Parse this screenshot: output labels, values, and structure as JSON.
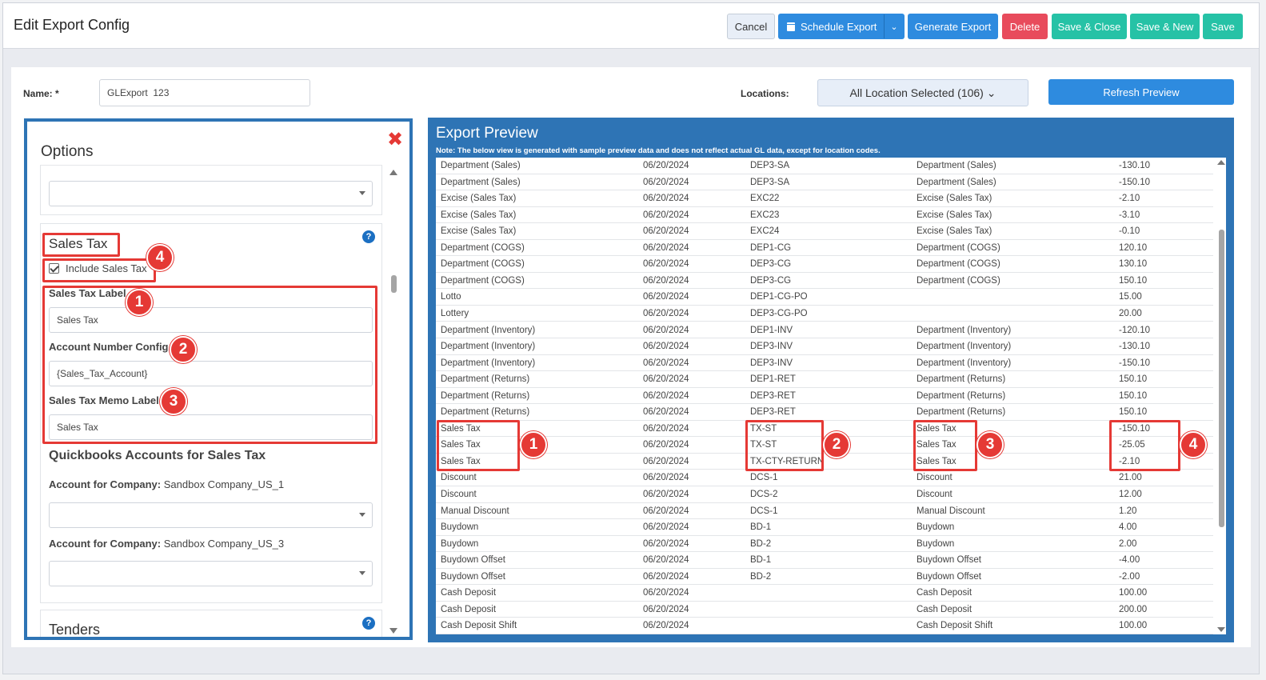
{
  "header": {
    "title": "Edit Export Config",
    "buttons": {
      "cancel": "Cancel",
      "schedule": "Schedule Export",
      "generate": "Generate Export",
      "delete": "Delete",
      "save_close": "Save & Close",
      "save_new": "Save & New",
      "save": "Save"
    }
  },
  "form": {
    "name_label": "Name: *",
    "name_value": "GLExport  123",
    "locations_label": "Locations:",
    "locations_value": "All Location Selected (106) ⌄",
    "refresh_label": "Refresh Preview"
  },
  "options": {
    "title": "Options",
    "close_glyph": "✖",
    "sales_tax": {
      "title": "Sales Tax",
      "include_label": "Include Sales Tax",
      "include_checked": true,
      "label_field": {
        "label": "Sales Tax Label",
        "value": "Sales Tax"
      },
      "account_field": {
        "label": "Account Number Config",
        "value": "{Sales_Tax_Account}"
      },
      "memo_field": {
        "label": "Sales Tax Memo Label",
        "value": "Sales Tax"
      },
      "qb_title": "Quickbooks Accounts for Sales Tax",
      "company1_prefix": "Account for Company:",
      "company1_name": "Sandbox Company_US_1",
      "company2_prefix": "Account for Company:",
      "company2_name": "Sandbox Company_US_3"
    },
    "tenders_title": "Tenders",
    "help_glyph": "?"
  },
  "badges": [
    "1",
    "2",
    "3",
    "4"
  ],
  "preview": {
    "title": "Export Preview",
    "note": "Note: The below view is generated with sample preview data and does not reflect actual GL data, except for location codes.",
    "rows": [
      [
        "Department (Sales)",
        "06/20/2024",
        "DEP3-SA",
        "Department (Sales)",
        "-130.10"
      ],
      [
        "Department (Sales)",
        "06/20/2024",
        "DEP3-SA",
        "Department (Sales)",
        "-150.10"
      ],
      [
        "Excise (Sales Tax)",
        "06/20/2024",
        "EXC22",
        "Excise (Sales Tax)",
        "-2.10"
      ],
      [
        "Excise (Sales Tax)",
        "06/20/2024",
        "EXC23",
        "Excise (Sales Tax)",
        "-3.10"
      ],
      [
        "Excise (Sales Tax)",
        "06/20/2024",
        "EXC24",
        "Excise (Sales Tax)",
        "-0.10"
      ],
      [
        "Department (COGS)",
        "06/20/2024",
        "DEP1-CG",
        "Department (COGS)",
        "120.10"
      ],
      [
        "Department (COGS)",
        "06/20/2024",
        "DEP3-CG",
        "Department (COGS)",
        "130.10"
      ],
      [
        "Department (COGS)",
        "06/20/2024",
        "DEP3-CG",
        "Department (COGS)",
        "150.10"
      ],
      [
        "Lotto",
        "06/20/2024",
        "DEP1-CG-PO",
        "",
        "15.00"
      ],
      [
        "Lottery",
        "06/20/2024",
        "DEP3-CG-PO",
        "",
        "20.00"
      ],
      [
        "Department (Inventory)",
        "06/20/2024",
        "DEP1-INV",
        "Department (Inventory)",
        "-120.10"
      ],
      [
        "Department (Inventory)",
        "06/20/2024",
        "DEP3-INV",
        "Department (Inventory)",
        "-130.10"
      ],
      [
        "Department (Inventory)",
        "06/20/2024",
        "DEP3-INV",
        "Department (Inventory)",
        "-150.10"
      ],
      [
        "Department (Returns)",
        "06/20/2024",
        "DEP1-RET",
        "Department (Returns)",
        "150.10"
      ],
      [
        "Department (Returns)",
        "06/20/2024",
        "DEP3-RET",
        "Department (Returns)",
        "150.10"
      ],
      [
        "Department (Returns)",
        "06/20/2024",
        "DEP3-RET",
        "Department (Returns)",
        "150.10"
      ],
      [
        "Sales Tax",
        "06/20/2024",
        "TX-ST",
        "Sales Tax",
        "-150.10"
      ],
      [
        "Sales Tax",
        "06/20/2024",
        "TX-ST",
        "Sales Tax",
        "-25.05"
      ],
      [
        "Sales Tax",
        "06/20/2024",
        "TX-CTY-RETURN",
        "Sales Tax",
        "-2.10"
      ],
      [
        "Discount",
        "06/20/2024",
        "DCS-1",
        "Discount",
        "21.00"
      ],
      [
        "Discount",
        "06/20/2024",
        "DCS-2",
        "Discount",
        "12.00"
      ],
      [
        "Manual Discount",
        "06/20/2024",
        "DCS-1",
        "Manual Discount",
        "1.20"
      ],
      [
        "Buydown",
        "06/20/2024",
        "BD-1",
        "Buydown",
        "4.00"
      ],
      [
        "Buydown",
        "06/20/2024",
        "BD-2",
        "Buydown",
        "2.00"
      ],
      [
        "Buydown Offset",
        "06/20/2024",
        "BD-1",
        "Buydown Offset",
        "-4.00"
      ],
      [
        "Buydown Offset",
        "06/20/2024",
        "BD-2",
        "Buydown Offset",
        "-2.00"
      ],
      [
        "Cash Deposit",
        "06/20/2024",
        "",
        "Cash Deposit",
        "100.00"
      ],
      [
        "Cash Deposit",
        "06/20/2024",
        "",
        "Cash Deposit",
        "200.00"
      ],
      [
        "Cash Deposit Shift",
        "06/20/2024",
        "",
        "Cash Deposit Shift",
        "100.00"
      ]
    ]
  },
  "colors": {
    "primary": "#2e8bdf",
    "panel_border": "#2e74b5",
    "danger": "#e84b5c",
    "success": "#26c2a6",
    "annotation": "#e53935"
  }
}
